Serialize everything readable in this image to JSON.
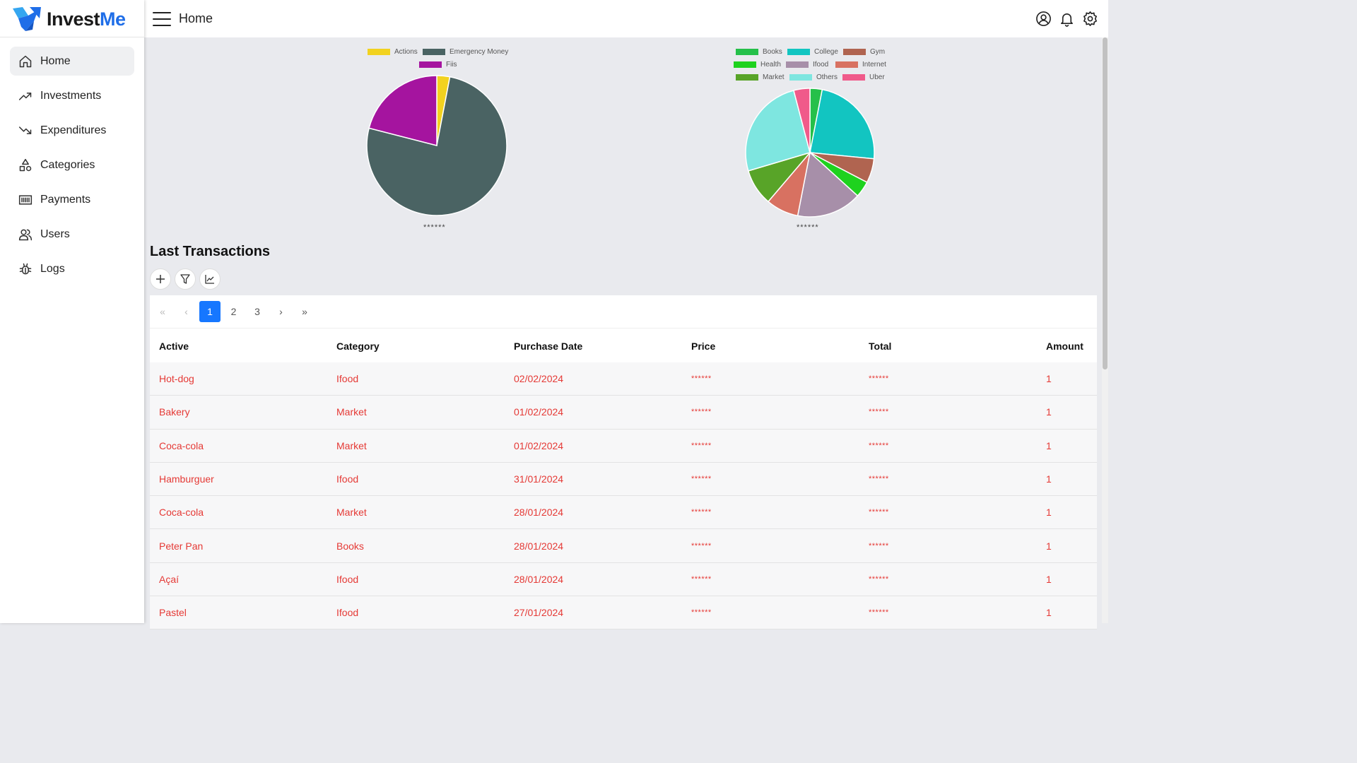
{
  "app": {
    "brand_a": "Invest",
    "brand_b": "Me"
  },
  "topbar": {
    "title": "Home"
  },
  "sidebar": {
    "items": [
      {
        "label": "Home",
        "icon": "home-icon",
        "active": true
      },
      {
        "label": "Investments",
        "icon": "trending-up-icon"
      },
      {
        "label": "Expenditures",
        "icon": "trending-down-icon"
      },
      {
        "label": "Categories",
        "icon": "shapes-icon"
      },
      {
        "label": "Payments",
        "icon": "barcode-icon"
      },
      {
        "label": "Users",
        "icon": "users-icon"
      },
      {
        "label": "Logs",
        "icon": "bug-icon"
      }
    ]
  },
  "chart_data": [
    {
      "type": "pie",
      "title": "",
      "caption": "******",
      "legend_position": "top",
      "categories": [
        "Actions",
        "Emergency Money",
        "Fiis"
      ],
      "values": [
        3,
        76,
        21
      ],
      "colors": [
        "#f2d21f",
        "#4a6363",
        "#a5149f"
      ]
    },
    {
      "type": "pie",
      "title": "",
      "caption": "******",
      "legend_position": "top",
      "categories": [
        "Books",
        "College",
        "Gym",
        "Health",
        "Ifood",
        "Internet",
        "Market",
        "Others",
        "Uber"
      ],
      "values": [
        3,
        23,
        6,
        4,
        16,
        8,
        9,
        25,
        4
      ],
      "colors": [
        "#25c04a",
        "#12c5c1",
        "#b06450",
        "#1ed21e",
        "#a78fa9",
        "#d87161",
        "#58a428",
        "#7ee6e0",
        "#f05a8a"
      ]
    }
  ],
  "transactions": {
    "title": "Last Transactions",
    "pagination": {
      "first": "«",
      "prev": "‹",
      "pages": [
        "1",
        "2",
        "3"
      ],
      "current": "1",
      "next": "›",
      "last": "»"
    },
    "columns": [
      "Active",
      "Category",
      "Purchase Date",
      "Price",
      "Total",
      "Amount"
    ],
    "rows": [
      {
        "active": "Hot-dog",
        "category": "Ifood",
        "date": "02/02/2024",
        "price": "******",
        "total": "******",
        "amount": "1"
      },
      {
        "active": "Bakery",
        "category": "Market",
        "date": "01/02/2024",
        "price": "******",
        "total": "******",
        "amount": "1"
      },
      {
        "active": "Coca-cola",
        "category": "Market",
        "date": "01/02/2024",
        "price": "******",
        "total": "******",
        "amount": "1"
      },
      {
        "active": "Hamburguer",
        "category": "Ifood",
        "date": "31/01/2024",
        "price": "******",
        "total": "******",
        "amount": "1"
      },
      {
        "active": "Coca-cola",
        "category": "Market",
        "date": "28/01/2024",
        "price": "******",
        "total": "******",
        "amount": "1"
      },
      {
        "active": "Peter Pan",
        "category": "Books",
        "date": "28/01/2024",
        "price": "******",
        "total": "******",
        "amount": "1"
      },
      {
        "active": "Açaí",
        "category": "Ifood",
        "date": "28/01/2024",
        "price": "******",
        "total": "******",
        "amount": "1"
      },
      {
        "active": "Pastel",
        "category": "Ifood",
        "date": "27/01/2024",
        "price": "******",
        "total": "******",
        "amount": "1"
      }
    ]
  },
  "colors": {
    "accent": "#1677ff",
    "row_text": "#e53935",
    "brand_blue": "#1f6ee8"
  }
}
